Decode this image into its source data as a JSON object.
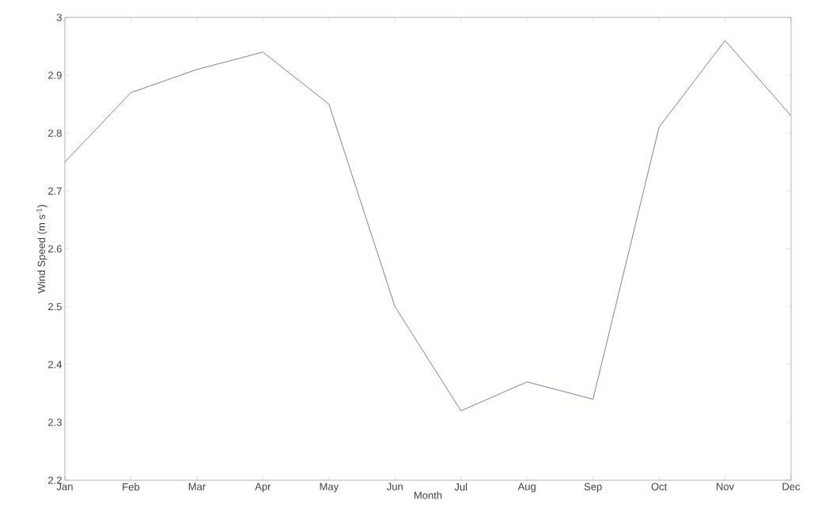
{
  "chart_data": {
    "type": "line",
    "xlabel": "Month",
    "ylabel": "Wind Speed (m s$^{-1}$)",
    "categories": [
      "Jan",
      "Feb",
      "Mar",
      "Apr",
      "May",
      "Jun",
      "Jul",
      "Aug",
      "Sep",
      "Oct",
      "Nov",
      "Dec"
    ],
    "series": [
      {
        "color": "#5c5c9c",
        "values": [
          2.75,
          2.87,
          2.91,
          2.94,
          2.85,
          2.5,
          2.32,
          2.37,
          2.34,
          2.81,
          2.96,
          2.83
        ]
      }
    ],
    "ylim": [
      2.2,
      3
    ],
    "yticks": [
      2.2,
      2.3,
      2.4,
      2.5,
      2.6,
      2.7,
      2.8,
      2.9,
      3
    ],
    "grid": false,
    "legend": false,
    "marker": "none",
    "line_style": "solid"
  }
}
